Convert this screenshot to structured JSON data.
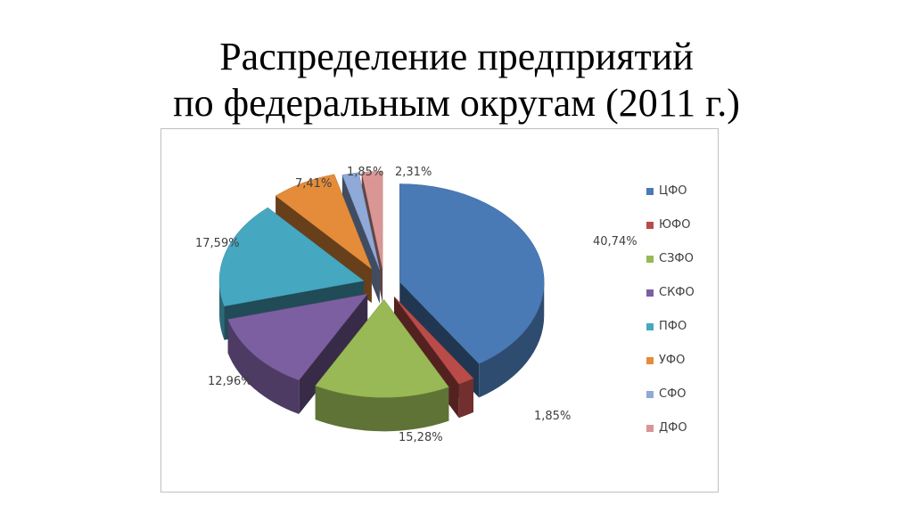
{
  "slide": {
    "title_line1": "Распределение предприятий",
    "title_line2": "по федеральным округам (2011 г.)"
  },
  "chart_data": {
    "type": "pie",
    "style": "3d-exploded",
    "legend_position": "right",
    "categories": [
      "ЦФО",
      "ЮФО",
      "СЗФО",
      "СКФО",
      "ПФО",
      "УФО",
      "СФО",
      "ДФО"
    ],
    "values": [
      40.74,
      1.85,
      15.28,
      12.96,
      17.59,
      7.41,
      1.85,
      2.31
    ],
    "labels": [
      "40,74%",
      "1,85%",
      "15,28%",
      "12,96%",
      "17,59%",
      "7,41%",
      "1,85%",
      "2,31%"
    ],
    "colors": [
      "#4a7ab5",
      "#b94b48",
      "#98b956",
      "#7c5fa0",
      "#46a7c1",
      "#e58c3a",
      "#8fa9d8",
      "#d99694"
    ]
  }
}
